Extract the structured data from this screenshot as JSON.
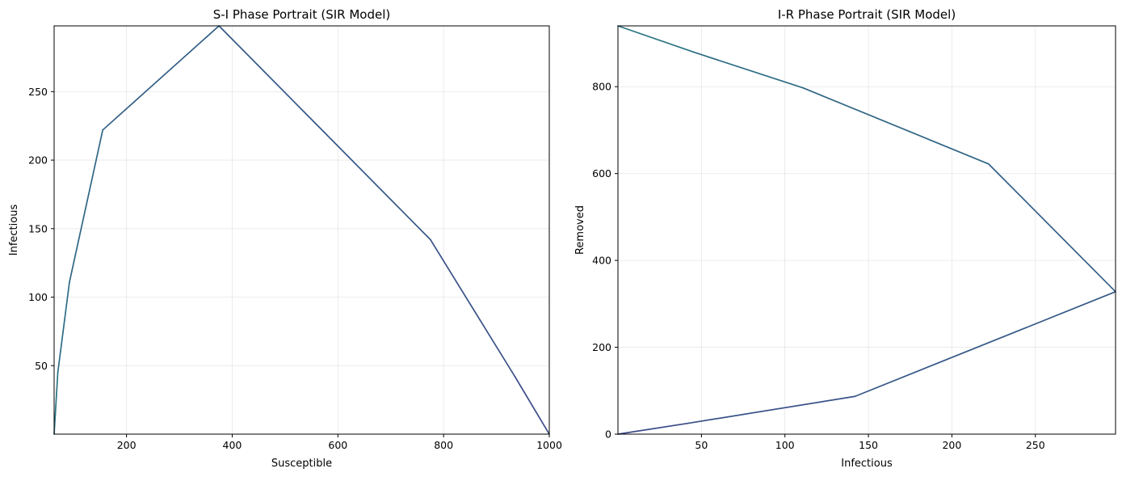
{
  "chart_data": [
    {
      "type": "line",
      "title": "S-I Phase Portrait (SIR Model)",
      "xlabel": "Susceptible",
      "ylabel": "Infectious",
      "xlim": [
        63,
        1000
      ],
      "ylim": [
        0,
        298
      ],
      "xticks": [
        200,
        400,
        600,
        800,
        1000
      ],
      "yticks": [
        50,
        100,
        150,
        200,
        250
      ],
      "grid": true,
      "x": [
        1000,
        935,
        775,
        375,
        155,
        92,
        70,
        63
      ],
      "y": [
        0,
        42,
        142,
        298,
        222,
        111,
        45,
        0
      ],
      "color_start": "#3b4a88",
      "color_end": "#2a7484"
    },
    {
      "type": "line",
      "title": "I-R Phase Portrait (SIR Model)",
      "xlabel": "Infectious",
      "ylabel": "Removed",
      "xlim": [
        0,
        298
      ],
      "ylim": [
        0,
        940
      ],
      "xticks": [
        50,
        100,
        150,
        200,
        250
      ],
      "yticks": [
        0,
        200,
        400,
        600,
        800
      ],
      "grid": true,
      "x": [
        0,
        42,
        142,
        298,
        222,
        111,
        45,
        0
      ],
      "y": [
        0,
        25,
        87,
        328,
        622,
        797,
        880,
        940
      ],
      "color_start": "#3b4a88",
      "color_end": "#2a7484"
    }
  ]
}
